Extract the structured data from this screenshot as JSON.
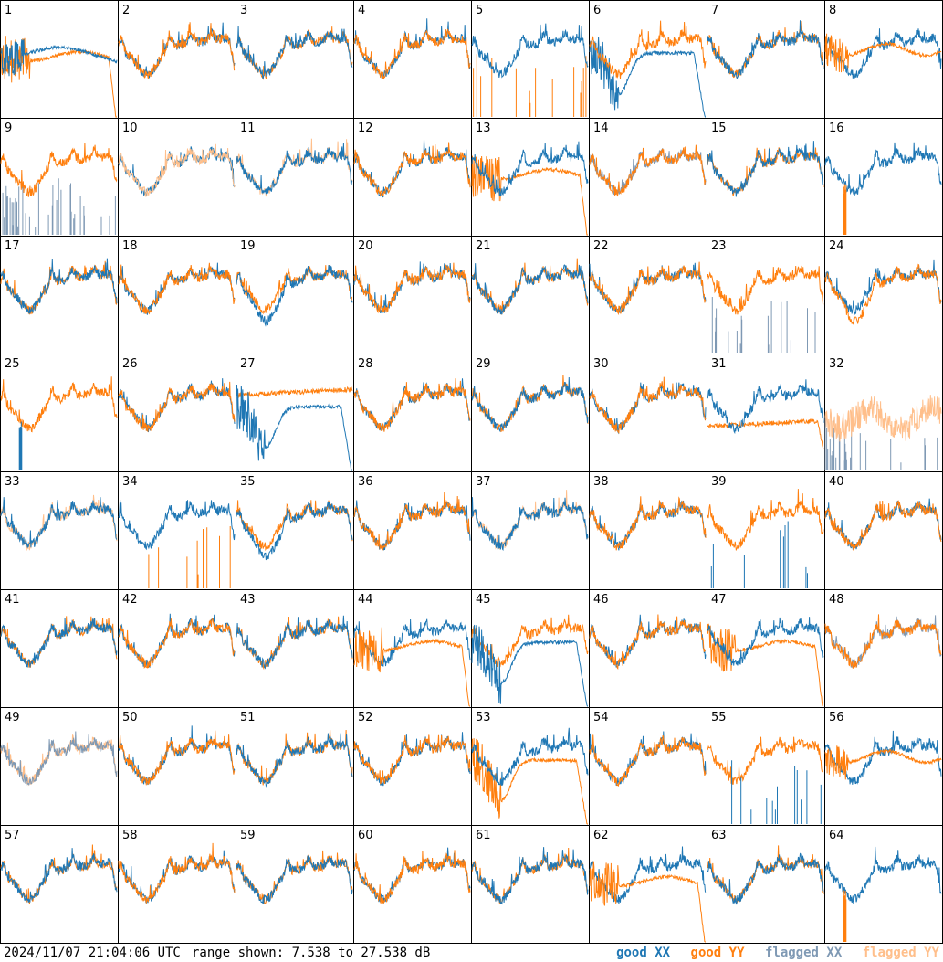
{
  "footer": {
    "timestamp": "2024/11/07 21:04:06 UTC",
    "range_text": "range shown: 7.538 to 27.538 dB"
  },
  "legend": {
    "good_xx": "good XX",
    "good_yy": "good YY",
    "flagged_xx": "flagged XX",
    "flagged_yy": "flagged YY"
  },
  "colors": {
    "good_xx": "#1f77b4",
    "good_yy": "#ff7f0e",
    "flagged_xx": "#7f99b4",
    "flagged_yy": "#ffbf8b",
    "border": "#000000",
    "background": "#ffffff"
  },
  "chart_data": {
    "type": "line",
    "layout": "8x8 grid of per-antenna bandpass spectra",
    "ylim_db": [
      7.538,
      27.538
    ],
    "ylabel": "",
    "xlabel": "",
    "panels": [
      {
        "id": 1,
        "xx": "bad-flat",
        "yy": "flat-noisy-dropout"
      },
      {
        "id": 2,
        "xx": "typical",
        "yy": "typical"
      },
      {
        "id": 3,
        "xx": "typical",
        "yy": "typical"
      },
      {
        "id": 4,
        "xx": "typical",
        "yy": "typical"
      },
      {
        "id": 5,
        "xx": "typical",
        "yy": "spikes-only"
      },
      {
        "id": 6,
        "xx": "dip-noisy",
        "yy": "typical"
      },
      {
        "id": 7,
        "xx": "typical",
        "yy": "typical"
      },
      {
        "id": 8,
        "xx": "typical",
        "yy": "flat-noisy"
      },
      {
        "id": 9,
        "xx": "spikes-flagged",
        "yy": "typical"
      },
      {
        "id": 10,
        "xx": "typical",
        "yy": "typical-flagged"
      },
      {
        "id": 11,
        "xx": "typical",
        "yy": "typical-flagged"
      },
      {
        "id": 12,
        "xx": "typical",
        "yy": "typical"
      },
      {
        "id": 13,
        "xx": "typical",
        "yy": "flat-noisy-dropout"
      },
      {
        "id": 14,
        "xx": "typical-flagged",
        "yy": "typical"
      },
      {
        "id": 15,
        "xx": "typical",
        "yy": "typical"
      },
      {
        "id": 16,
        "xx": "typical",
        "yy": "single-spike"
      },
      {
        "id": 17,
        "xx": "typical",
        "yy": "typical"
      },
      {
        "id": 18,
        "xx": "typical",
        "yy": "typical"
      },
      {
        "id": 19,
        "xx": "typical-low",
        "yy": "typical"
      },
      {
        "id": 20,
        "xx": "typical",
        "yy": "typical"
      },
      {
        "id": 21,
        "xx": "typical",
        "yy": "typical"
      },
      {
        "id": 22,
        "xx": "typical",
        "yy": "typical"
      },
      {
        "id": 23,
        "xx": "spikes-flagged",
        "yy": "typical"
      },
      {
        "id": 24,
        "xx": "typical",
        "yy": "typical-low"
      },
      {
        "id": 25,
        "xx": "single-spike",
        "yy": "typical"
      },
      {
        "id": 26,
        "xx": "typical",
        "yy": "typical"
      },
      {
        "id": 27,
        "xx": "dip-noisy",
        "yy": "flat-high"
      },
      {
        "id": 28,
        "xx": "typical",
        "yy": "typical"
      },
      {
        "id": 29,
        "xx": "typical",
        "yy": "typical"
      },
      {
        "id": 30,
        "xx": "typical",
        "yy": "typical"
      },
      {
        "id": 31,
        "xx": "typical",
        "yy": "flat-low"
      },
      {
        "id": 32,
        "xx": "spikes-flagged",
        "yy": "noisy-flagged"
      },
      {
        "id": 33,
        "xx": "typical",
        "yy": "typical-flagged"
      },
      {
        "id": 34,
        "xx": "typical",
        "yy": "spikes-only"
      },
      {
        "id": 35,
        "xx": "typical-low",
        "yy": "typical"
      },
      {
        "id": 36,
        "xx": "typical",
        "yy": "typical"
      },
      {
        "id": 37,
        "xx": "typical",
        "yy": "typical-flagged"
      },
      {
        "id": 38,
        "xx": "typical",
        "yy": "typical"
      },
      {
        "id": 39,
        "xx": "spikes-only",
        "yy": "typical"
      },
      {
        "id": 40,
        "xx": "typical",
        "yy": "typical"
      },
      {
        "id": 41,
        "xx": "typical",
        "yy": "typical"
      },
      {
        "id": 42,
        "xx": "typical",
        "yy": "typical"
      },
      {
        "id": 43,
        "xx": "typical",
        "yy": "typical"
      },
      {
        "id": 44,
        "xx": "typical",
        "yy": "flat-noisy-dropout"
      },
      {
        "id": 45,
        "xx": "dip-noisy",
        "yy": "typical"
      },
      {
        "id": 46,
        "xx": "typical",
        "yy": "typical"
      },
      {
        "id": 47,
        "xx": "typical",
        "yy": "flat-noisy-dropout"
      },
      {
        "id": 48,
        "xx": "typical-flagged",
        "yy": "typical"
      },
      {
        "id": 49,
        "xx": "typical-flagged",
        "yy": "typical-flagged"
      },
      {
        "id": 50,
        "xx": "typical",
        "yy": "typical"
      },
      {
        "id": 51,
        "xx": "typical",
        "yy": "typical"
      },
      {
        "id": 52,
        "xx": "typical",
        "yy": "typical"
      },
      {
        "id": 53,
        "xx": "typical",
        "yy": "dip-noisy"
      },
      {
        "id": 54,
        "xx": "typical",
        "yy": "typical"
      },
      {
        "id": 55,
        "xx": "spikes-only",
        "yy": "typical"
      },
      {
        "id": 56,
        "xx": "typical",
        "yy": "flat-noisy"
      },
      {
        "id": 57,
        "xx": "typical",
        "yy": "typical"
      },
      {
        "id": 58,
        "xx": "typical",
        "yy": "typical"
      },
      {
        "id": 59,
        "xx": "typical",
        "yy": "typical"
      },
      {
        "id": 60,
        "xx": "typical",
        "yy": "typical"
      },
      {
        "id": 61,
        "xx": "typical",
        "yy": "typical"
      },
      {
        "id": 62,
        "xx": "typical",
        "yy": "flat-noisy-dropout"
      },
      {
        "id": 63,
        "xx": "typical",
        "yy": "typical"
      },
      {
        "id": 64,
        "xx": "typical",
        "yy": "single-spike"
      }
    ]
  }
}
